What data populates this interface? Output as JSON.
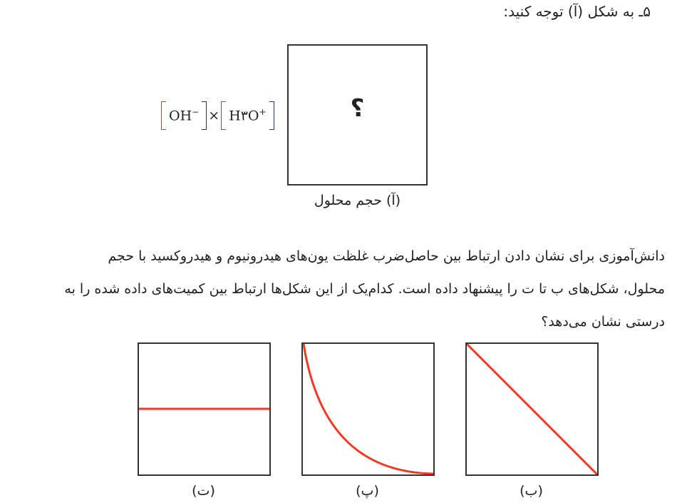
{
  "question": {
    "title": "۵ـ به شکل (آ) توجه کنید:",
    "figure_a": {
      "question_mark": "؟",
      "y_label_formula": {
        "oh": "OH",
        "oh_charge": "−",
        "times": "×",
        "h3o": "H۳O",
        "h3o_charge": "+"
      },
      "caption": "(آ) حجم محلول"
    },
    "paragraph_lines": [
      "دانش‌آموزی برای نشان دادن ارتباط بین حاصل‌ضرب غلظت یون‌های هیدرونیوم و هیدروکسید با حجم",
      "محلول، شکل‌های ب تا ت را پیشنهاد داده است.  کدام‌یک از این شکل‌ها ارتباط بین کمیت‌های داده شده را به",
      "درستی نشان می‌دهد؟"
    ],
    "options": [
      {
        "caption": "(ت)",
        "shape": "horizontal-line"
      },
      {
        "caption": "(پ)",
        "shape": "decreasing-curve"
      },
      {
        "caption": "(ب)",
        "shape": "decreasing-diagonal"
      }
    ],
    "colors": {
      "curve": "#f03a22",
      "frame": "#333333",
      "bracket_left": "#8a5a3a",
      "bracket_right_h3o": "#2a3a6a"
    }
  }
}
